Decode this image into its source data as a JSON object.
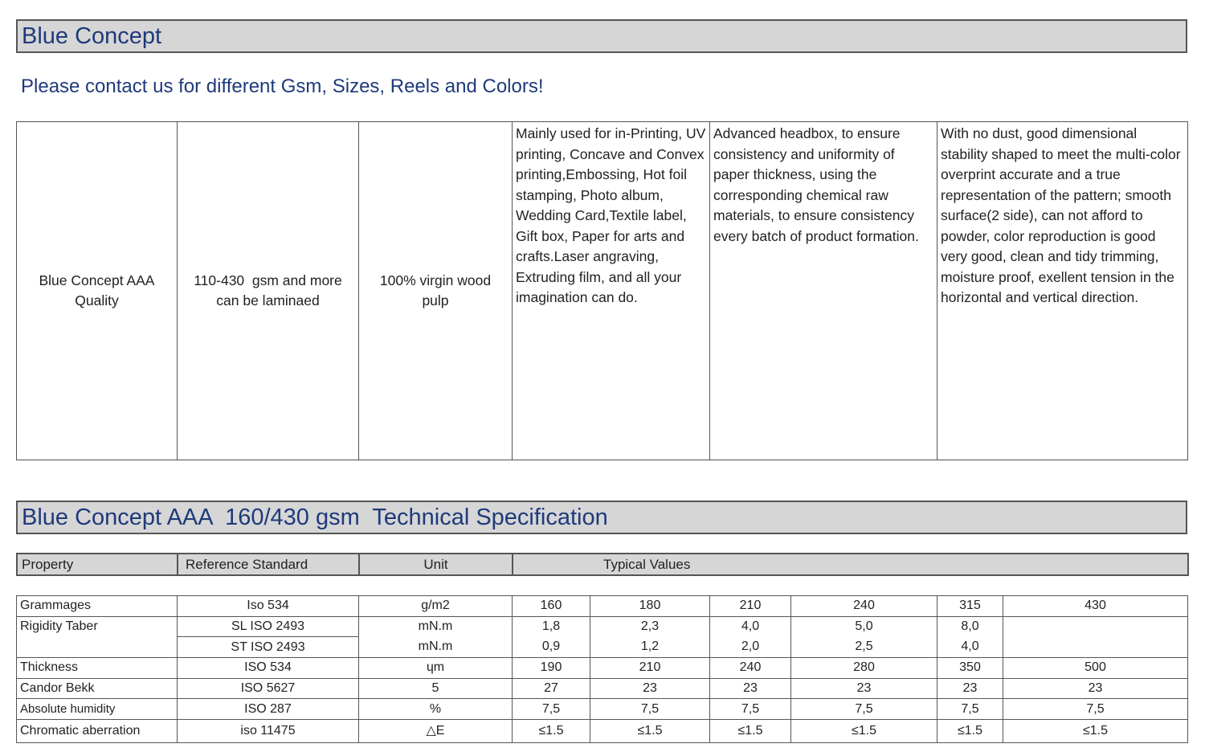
{
  "title_bar": "Blue Concept",
  "contact_line": "Please contact us for different Gsm, Sizes, Reels and Colors!",
  "product": {
    "name_lines": [
      "Blue Concept AAA",
      "Quality"
    ],
    "gsm_lines": [
      "110-430  gsm and more",
      "can be laminaed"
    ],
    "pulp_lines": [
      "100% virgin wood",
      "pulp"
    ],
    "usage": "Mainly used for in-Printing, UV printing, Concave and Convex printing,Embossing, Hot foil stamping, Photo album, Wedding Card,Textile label, Gift box, Paper for arts and crafts.Laser angraving, Extruding film, and all your imagination can do.",
    "process": "Advanced headbox, to ensure consistency and uniformity of paper thickness, using the corresponding chemical raw materials, to ensure consistency every batch of product formation.",
    "features": "With no dust, good dimensional stability shaped to meet the multi-color overprint accurate and a true representation of the pattern; smooth surface(2 side), can not afford to powder, color reproduction is good very good, clean and tidy trimming, moisture proof, exellent tension in the horizontal and vertical direction."
  },
  "spec_bar": "Blue Concept AAA  160/430 gsm  Technical Specification",
  "spec_header": {
    "property": "Property",
    "reference": "Reference Standard",
    "unit": "Unit",
    "typical": "Typical Values"
  },
  "spec_rows": {
    "grammages": {
      "property": "Grammages",
      "standard": "Iso 534",
      "unit": "g/m2",
      "values": [
        "160",
        "180",
        "210",
        "240",
        "315",
        "430"
      ]
    },
    "rigidity_sl": {
      "property": "Rigidity Taber",
      "standard": "SL ISO 2493",
      "unit": "mN.m",
      "values": [
        "1,8",
        "2,3",
        "4,0",
        "5,0",
        "8,0",
        ""
      ]
    },
    "rigidity_st": {
      "standard": "ST ISO 2493",
      "unit": "mN.m",
      "values": [
        "0,9",
        "1,2",
        "2,0",
        "2,5",
        "4,0",
        ""
      ]
    },
    "thickness": {
      "property": "Thickness",
      "standard": "ISO 534",
      "unit": "ɥm",
      "values": [
        "190",
        "210",
        "240",
        "280",
        "350",
        "500"
      ]
    },
    "candor": {
      "property": "Candor Bekk",
      "standard": "ISO 5627",
      "unit": "5",
      "values": [
        "27",
        "23",
        "23",
        "23",
        "23",
        "23"
      ]
    },
    "humidity": {
      "property": "Absolute humidity",
      "standard": "ISO 287",
      "unit": "%",
      "values": [
        "7,5",
        "7,5",
        "7,5",
        "7,5",
        "7,5",
        "7,5"
      ]
    },
    "chromatic": {
      "property": "Chromatic aberration",
      "standard": "iso 11475",
      "unit": "△E",
      "values": [
        "≤1.5",
        "≤1.5",
        "≤1.5",
        "≤1.5",
        "≤1.5",
        "≤1.5"
      ]
    }
  }
}
